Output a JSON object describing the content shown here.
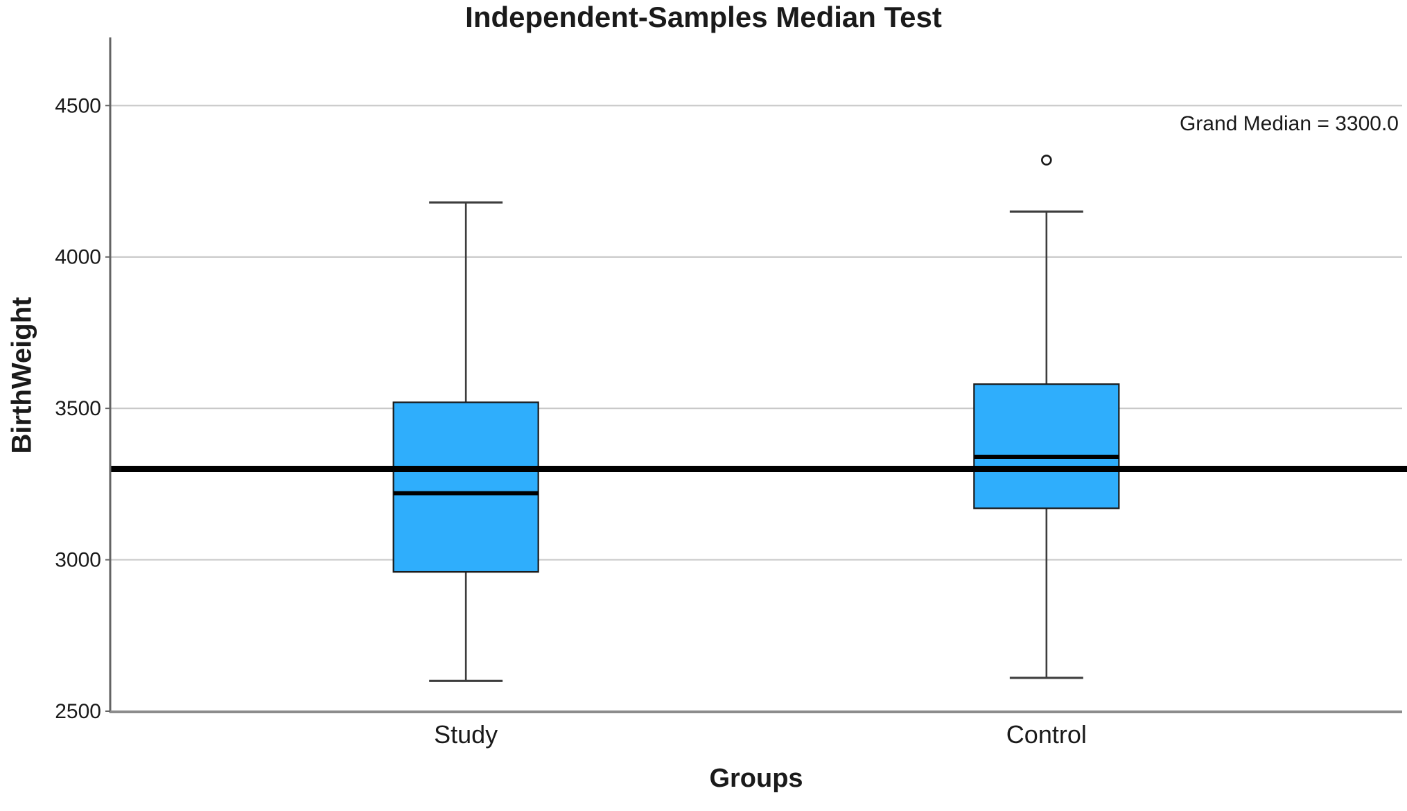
{
  "chart_data": {
    "type": "boxplot",
    "title": "Independent-Samples Median Test",
    "xlabel": "Groups",
    "ylabel": "BirthWeight",
    "annotation": "Grand Median = 3300.0",
    "grand_median": 3300.0,
    "categories": [
      "Study",
      "Control"
    ],
    "series": [
      {
        "name": "Study",
        "whisker_low": 2600,
        "q1": 2960,
        "median": 3220,
        "q3": 3520,
        "whisker_high": 4180,
        "outliers": []
      },
      {
        "name": "Control",
        "whisker_low": 2610,
        "q1": 3170,
        "median": 3340,
        "q3": 3580,
        "whisker_high": 4150,
        "outliers": [
          4320
        ]
      }
    ],
    "y_ticks": [
      2500,
      3000,
      3500,
      4000,
      4500
    ],
    "ylim": [
      2500,
      4725
    ],
    "grid": true,
    "legend": "none",
    "colors": {
      "box_fill": "#2FAEFC",
      "box_border": "#1a1a1a",
      "median_line": "#000000",
      "grand_median_line": "#000000",
      "whisker": "#3d3d3d",
      "gridline": "#c9c9c9",
      "axis_y": "#636363",
      "axis_x": "#8c8c8c",
      "text": "#1a1a1a"
    }
  }
}
